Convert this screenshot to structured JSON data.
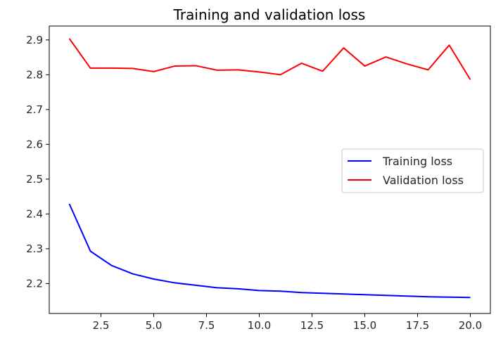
{
  "chart_data": {
    "type": "line",
    "title": "Training and validation loss",
    "xlabel": "",
    "ylabel": "",
    "xlim": [
      0.05,
      20.95
    ],
    "ylim": [
      2.114,
      2.94
    ],
    "x_ticks": [
      2.5,
      5.0,
      7.5,
      10.0,
      12.5,
      15.0,
      17.5,
      20.0
    ],
    "x_tick_labels": [
      "2.5",
      "5.0",
      "7.5",
      "10.0",
      "12.5",
      "15.0",
      "17.5",
      "20.0"
    ],
    "y_ticks": [
      2.2,
      2.3,
      2.4,
      2.5,
      2.6,
      2.7,
      2.8,
      2.9
    ],
    "y_tick_labels": [
      "2.2",
      "2.3",
      "2.4",
      "2.5",
      "2.6",
      "2.7",
      "2.8",
      "2.9"
    ],
    "grid": false,
    "legend_position": "center-right",
    "x": [
      1,
      2,
      3,
      4,
      5,
      6,
      7,
      8,
      9,
      10,
      11,
      12,
      13,
      14,
      15,
      16,
      17,
      18,
      19,
      20
    ],
    "series": [
      {
        "name": "Training loss",
        "color": "#0000ff",
        "values": [
          2.429,
          2.293,
          2.252,
          2.228,
          2.213,
          2.202,
          2.195,
          2.188,
          2.185,
          2.18,
          2.178,
          2.174,
          2.172,
          2.17,
          2.168,
          2.166,
          2.164,
          2.162,
          2.161,
          2.16
        ]
      },
      {
        "name": "Validation loss",
        "color": "#ff0000",
        "values": [
          2.904,
          2.819,
          2.819,
          2.818,
          2.809,
          2.825,
          2.826,
          2.813,
          2.814,
          2.808,
          2.8,
          2.833,
          2.81,
          2.877,
          2.825,
          2.851,
          2.831,
          2.814,
          2.885,
          2.786
        ]
      }
    ]
  }
}
